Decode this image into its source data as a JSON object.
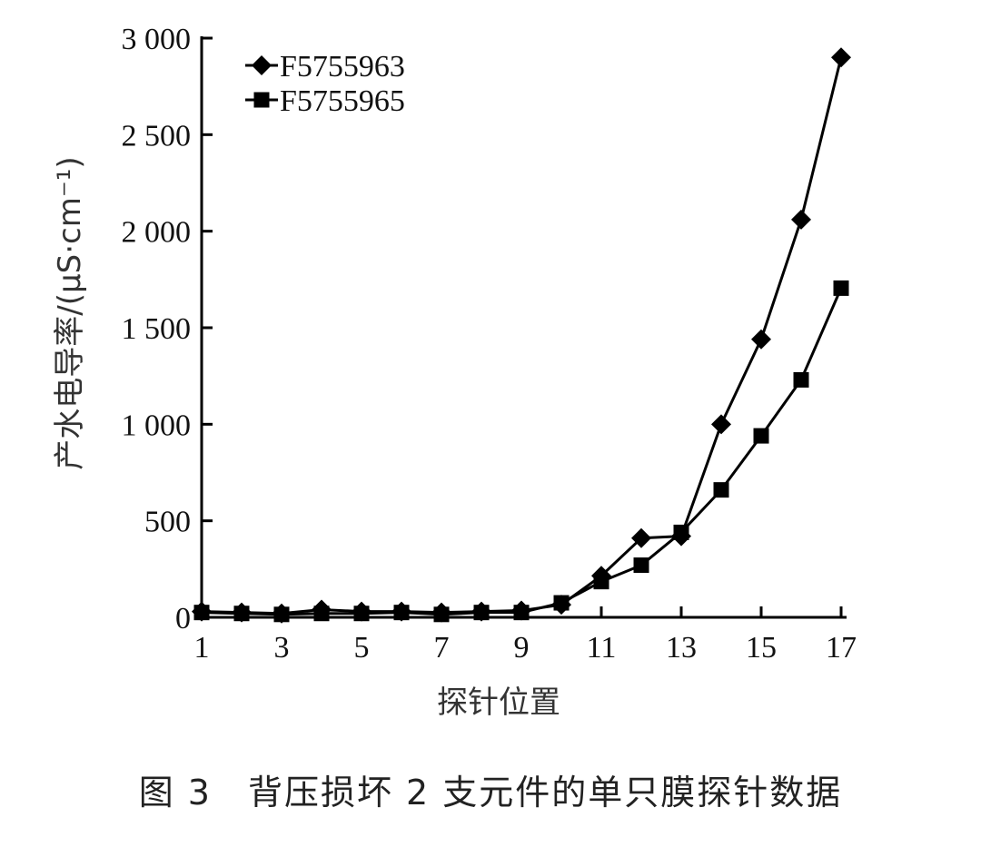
{
  "chart_data": {
    "type": "line",
    "xlabel": "探针位置",
    "ylabel": "产水电导率/(μS·cm⁻¹)",
    "xlim": [
      1,
      17
    ],
    "ylim": [
      0,
      3000
    ],
    "xticks": [
      1,
      3,
      5,
      7,
      9,
      11,
      13,
      15,
      17
    ],
    "yticks": [
      0,
      500,
      1000,
      1500,
      2000,
      2500,
      3000
    ],
    "ytick_labels": [
      "0",
      "500",
      "1 000",
      "1 500",
      "2 000",
      "2 500",
      "3 000"
    ],
    "legend_position": "top-left",
    "grid": false,
    "x": [
      1,
      2,
      3,
      4,
      5,
      6,
      7,
      8,
      9,
      10,
      11,
      12,
      13,
      14,
      15,
      16,
      17
    ],
    "series": [
      {
        "name": "F5755963",
        "marker": "diamond",
        "color": "#000000",
        "values": [
          30,
          25,
          20,
          40,
          30,
          30,
          25,
          30,
          35,
          65,
          215,
          410,
          420,
          1000,
          1440,
          2060,
          2900
        ]
      },
      {
        "name": "F5755965",
        "marker": "square",
        "color": "#000000",
        "values": [
          25,
          20,
          15,
          20,
          20,
          25,
          15,
          25,
          25,
          75,
          185,
          270,
          440,
          660,
          940,
          1230,
          1705
        ]
      }
    ]
  },
  "caption": "图 3　背压损坏 2 支元件的单只膜探针数据"
}
